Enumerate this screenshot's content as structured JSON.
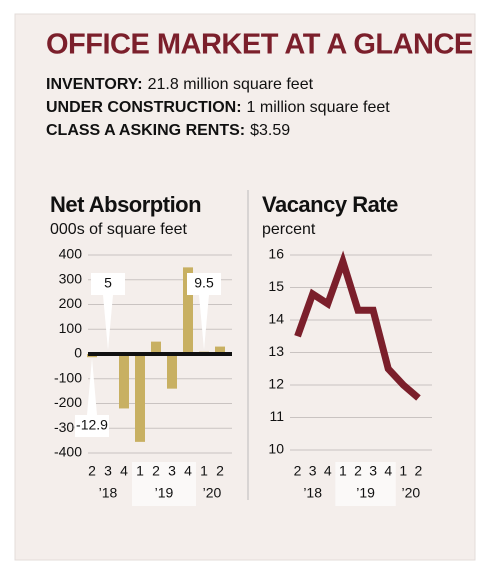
{
  "header": {
    "title": "OFFICE MARKET AT A GLANCE",
    "facts": [
      {
        "label": "INVENTORY:",
        "value": "21.8 million square feet"
      },
      {
        "label": "UNDER CONSTRUCTION:",
        "value": "1 million square feet"
      },
      {
        "label": "CLASS A ASKING RENTS:",
        "value": "$3.59"
      }
    ]
  },
  "chart_data": [
    {
      "type": "bar",
      "title": "Net Absorption",
      "subtitle": "000s of square feet",
      "categories": [
        "2",
        "3",
        "4",
        "1",
        "2",
        "3",
        "4",
        "1",
        "2"
      ],
      "groups": [
        {
          "label": "’18",
          "count": 3
        },
        {
          "label": "’19",
          "count": 4
        },
        {
          "label": "’20",
          "count": 2
        }
      ],
      "values": [
        -12.9,
        5,
        -220,
        -355,
        50,
        -140,
        350,
        9.5,
        30
      ],
      "value_labels": [
        "-12.9",
        "5",
        null,
        null,
        null,
        null,
        null,
        "9.5",
        null
      ],
      "color": "#c8b062",
      "ylim": [
        -400,
        400
      ],
      "yticks": [
        400,
        300,
        200,
        100,
        0,
        -100,
        -200,
        -300,
        -400
      ],
      "grid": true
    },
    {
      "type": "line",
      "title": "Vacancy Rate",
      "subtitle": "percent",
      "categories": [
        "2",
        "3",
        "4",
        "1",
        "2",
        "3",
        "4",
        "1",
        "2"
      ],
      "groups": [
        {
          "label": "’18",
          "count": 3
        },
        {
          "label": "’19",
          "count": 4
        },
        {
          "label": "’20",
          "count": 2
        }
      ],
      "values": [
        13.5,
        14.8,
        14.5,
        15.8,
        14.3,
        14.3,
        12.5,
        12.0,
        11.6
      ],
      "color": "#7b1f2b",
      "ylim": [
        10,
        16
      ],
      "yticks": [
        16,
        15,
        14,
        13,
        12,
        11,
        10
      ],
      "grid": true
    }
  ]
}
